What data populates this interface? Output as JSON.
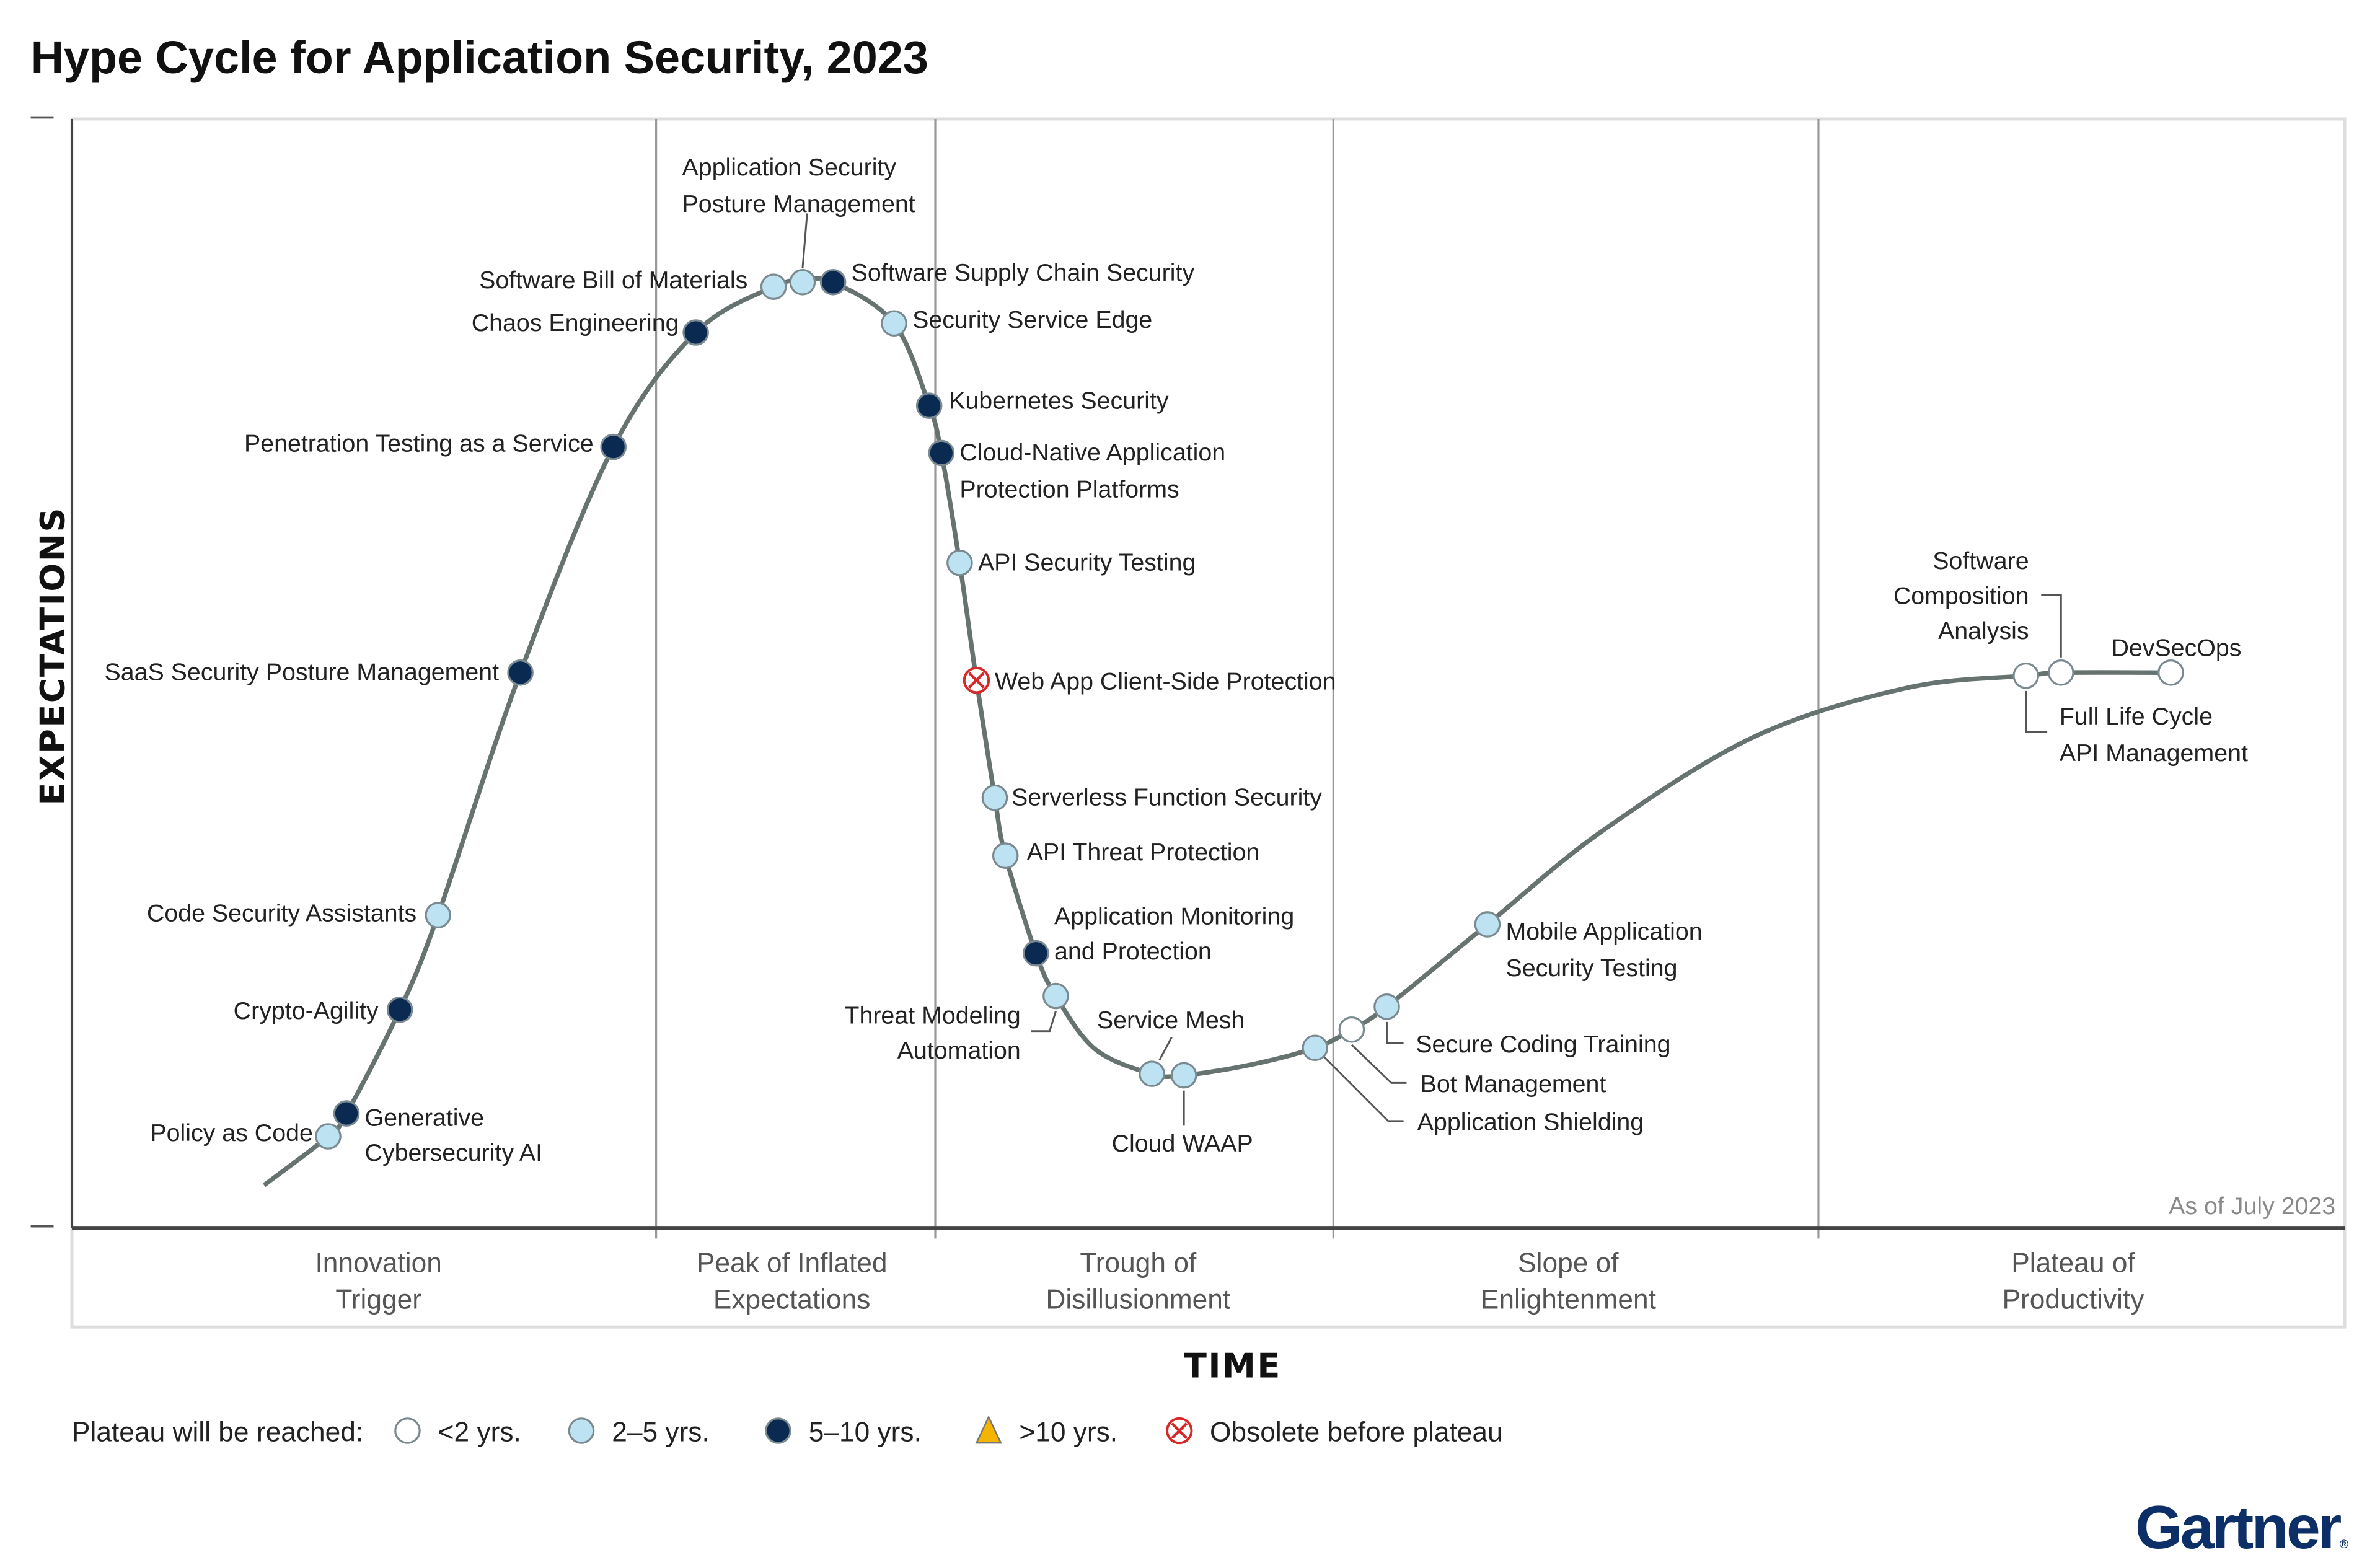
{
  "title": "Hype Cycle for Application Security, 2023",
  "y_axis_label": "EXPECTATIONS",
  "x_axis_label": "TIME",
  "as_of": "As of July 2023",
  "brand": "Gartner",
  "colors": {
    "lt2": "#ffffff",
    "y2to5": "#bde3f2",
    "y5to10": "#0b2a52",
    "gt10": "#f5b400",
    "obsolete": "#d62828",
    "curve": "#667370"
  },
  "phases": [
    {
      "line1": "Innovation",
      "line2": "Trigger"
    },
    {
      "line1": "Peak of Inflated",
      "line2": "Expectations"
    },
    {
      "line1": "Trough of",
      "line2": "Disillusionment"
    },
    {
      "line1": "Slope of",
      "line2": "Enlightenment"
    },
    {
      "line1": "Plateau of",
      "line2": "Productivity"
    }
  ],
  "legend": {
    "label": "Plateau will be reached:",
    "items": [
      {
        "key": "lt2",
        "text": "<2 yrs."
      },
      {
        "key": "y2to5",
        "text": "2–5 yrs."
      },
      {
        "key": "y5to10",
        "text": "5–10 yrs."
      },
      {
        "key": "gt10",
        "text": ">10 yrs."
      },
      {
        "key": "obsolete",
        "text": "Obsolete before plateau"
      }
    ]
  },
  "technologies": [
    {
      "name": [
        "Policy as Code"
      ],
      "plateau": "y2to5"
    },
    {
      "name": [
        "Generative",
        "Cybersecurity AI"
      ],
      "plateau": "y5to10"
    },
    {
      "name": [
        "Crypto-Agility"
      ],
      "plateau": "y5to10"
    },
    {
      "name": [
        "Code Security Assistants"
      ],
      "plateau": "y2to5"
    },
    {
      "name": [
        "SaaS Security Posture Management"
      ],
      "plateau": "y5to10"
    },
    {
      "name": [
        "Penetration Testing as a Service"
      ],
      "plateau": "y5to10"
    },
    {
      "name": [
        "Chaos Engineering"
      ],
      "plateau": "y5to10"
    },
    {
      "name": [
        "Software Bill of Materials"
      ],
      "plateau": "y2to5"
    },
    {
      "name": [
        "Application Security",
        "Posture Management"
      ],
      "plateau": "y2to5"
    },
    {
      "name": [
        "Software Supply Chain Security"
      ],
      "plateau": "y5to10"
    },
    {
      "name": [
        "Security Service Edge"
      ],
      "plateau": "y2to5"
    },
    {
      "name": [
        "Kubernetes Security"
      ],
      "plateau": "y5to10"
    },
    {
      "name": [
        "Cloud-Native Application",
        "Protection Platforms"
      ],
      "plateau": "y5to10"
    },
    {
      "name": [
        "API Security Testing"
      ],
      "plateau": "y2to5"
    },
    {
      "name": [
        "Web App Client-Side Protection"
      ],
      "plateau": "obsolete"
    },
    {
      "name": [
        "Serverless Function Security"
      ],
      "plateau": "y2to5"
    },
    {
      "name": [
        "API Threat Protection"
      ],
      "plateau": "y2to5"
    },
    {
      "name": [
        "Application Monitoring",
        "and Protection"
      ],
      "plateau": "y5to10"
    },
    {
      "name": [
        "Threat Modeling",
        "Automation"
      ],
      "plateau": "y2to5"
    },
    {
      "name": [
        "Service Mesh"
      ],
      "plateau": "y2to5"
    },
    {
      "name": [
        "Cloud WAAP"
      ],
      "plateau": "y2to5"
    },
    {
      "name": [
        "Application Shielding"
      ],
      "plateau": "y2to5"
    },
    {
      "name": [
        "Bot Management"
      ],
      "plateau": "lt2"
    },
    {
      "name": [
        "Secure Coding Training"
      ],
      "plateau": "y2to5"
    },
    {
      "name": [
        "Mobile Application",
        "Security Testing"
      ],
      "plateau": "y2to5"
    },
    {
      "name": [
        "Full Life Cycle",
        "API Management"
      ],
      "plateau": "lt2"
    },
    {
      "name": [
        "Software",
        "Composition",
        "Analysis"
      ],
      "plateau": "lt2"
    },
    {
      "name": [
        "DevSecOps"
      ],
      "plateau": "lt2"
    }
  ]
}
